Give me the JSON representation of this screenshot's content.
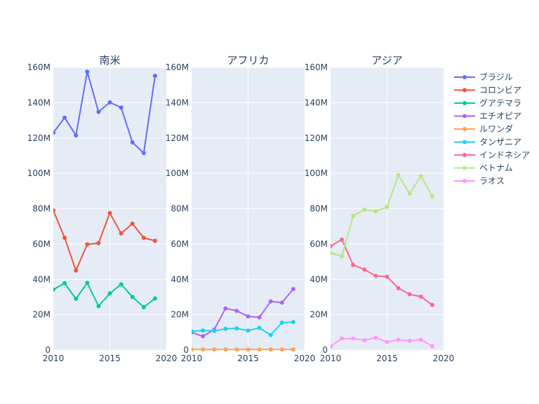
{
  "chart_data": {
    "type": "line",
    "x": [
      2010,
      2011,
      2012,
      2013,
      2014,
      2015,
      2016,
      2017,
      2018,
      2019
    ],
    "xlim": [
      2010,
      2020
    ],
    "xticks": [
      "2010",
      "2015",
      "2020"
    ],
    "ylim": [
      0,
      160
    ],
    "yticks": [
      "0",
      "20M",
      "40M",
      "60M",
      "80M",
      "100M",
      "120M",
      "140M",
      "160M"
    ],
    "colors": {
      "plot_bg": "#E5ECF6",
      "grid": "#ffffff",
      "text": "#2a3f5f"
    },
    "panels": [
      {
        "title": "南米",
        "series": [
          {
            "name": "ブラジル",
            "color": "#636EFA",
            "values": [
              123,
              131.5,
              121.5,
              157.5,
              134.8,
              140.2,
              137.2,
              117.5,
              111.5,
              155.2
            ]
          },
          {
            "name": "コロンビア",
            "color": "#EF553B",
            "values": [
              79,
              63.5,
              45,
              59.8,
              60.5,
              77.5,
              66,
              71.5,
              63.5,
              61.8
            ]
          },
          {
            "name": "グアテマラ",
            "color": "#00CC96",
            "values": [
              34.2,
              37.8,
              29,
              38,
              24.8,
              32,
              37.2,
              30,
              24.2,
              29.2
            ]
          }
        ]
      },
      {
        "title": "アフリカ",
        "series": [
          {
            "name": "エチオピア",
            "color": "#AB63FA",
            "values": [
              10,
              7.8,
              11.5,
              23.5,
              22.2,
              19,
              18.5,
              27.5,
              26.8,
              34.5
            ]
          },
          {
            "name": "ルワンダ",
            "color": "#FFA15A",
            "values": [
              0.3,
              0.3,
              0.3,
              0.3,
              0.3,
              0.3,
              0.3,
              0.3,
              0.3,
              0.3
            ]
          },
          {
            "name": "タンザニア",
            "color": "#19D3F3",
            "values": [
              10.5,
              11,
              10.8,
              12,
              12.2,
              11,
              12.5,
              8.5,
              15.5,
              15.8
            ]
          }
        ]
      },
      {
        "title": "アジア",
        "series": [
          {
            "name": "インドネシア",
            "color": "#FF6692",
            "values": [
              58.8,
              62.5,
              48.2,
              45.5,
              42,
              41.5,
              35,
              31.5,
              30.2,
              25.5
            ]
          },
          {
            "name": "ベトナム",
            "color": "#B6E880",
            "values": [
              55,
              53,
              76,
              79.5,
              78.5,
              81,
              99,
              88.5,
              98.5,
              87
            ]
          },
          {
            "name": "ラオス",
            "color": "#FF97FF",
            "values": [
              2,
              6.5,
              6.5,
              5.5,
              7,
              4.5,
              5.8,
              5.2,
              5.8,
              2.2
            ]
          }
        ]
      }
    ]
  }
}
